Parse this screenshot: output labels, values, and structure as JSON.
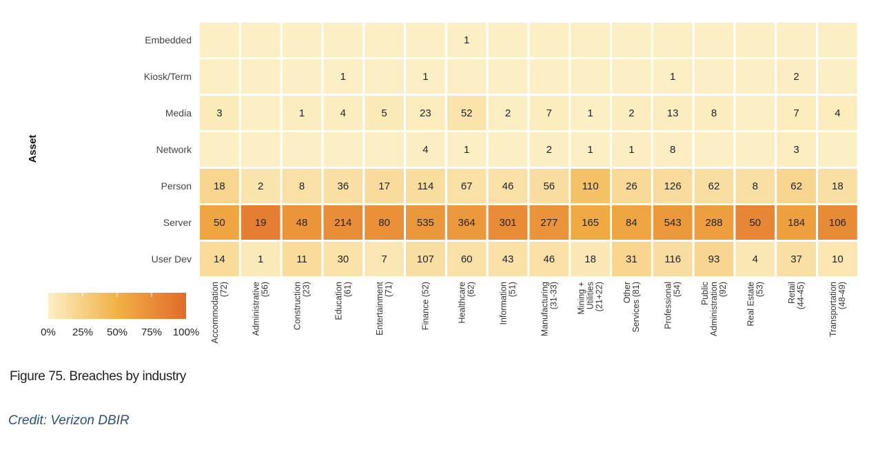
{
  "caption": "Figure 75. Breaches by industry",
  "credit": "Credit: Verizon DBIR",
  "colors": {
    "low": "#fcefc4",
    "mid": "#f2b146",
    "high": "#e06b2a",
    "text": "#222222",
    "credit": "#2d4f7c"
  },
  "chart_data": {
    "type": "heatmap",
    "ylabel": "Asset",
    "rows": [
      "Embedded",
      "Kiosk/Term",
      "Media",
      "Network",
      "Person",
      "Server",
      "User Dev"
    ],
    "columns": [
      [
        "Accommodation",
        "(72)"
      ],
      [
        "Administrative",
        "(56)"
      ],
      [
        "Construction",
        "(23)"
      ],
      [
        "Education",
        "(61)"
      ],
      [
        "Entertainment",
        "(71)"
      ],
      [
        "Finance (52)"
      ],
      [
        "Healthcare",
        "(62)"
      ],
      [
        "Information",
        "(51)"
      ],
      [
        "Manufacturing",
        "(31-33)"
      ],
      [
        "Mining +",
        "Utilities",
        "(21+22)"
      ],
      [
        "Other",
        "Services (81)"
      ],
      [
        "Professional",
        "(54)"
      ],
      [
        "Public",
        "Administration",
        "(92)"
      ],
      [
        "Real Estate",
        "(53)"
      ],
      [
        "Retail",
        "(44-45)"
      ],
      [
        "Transportation",
        "(48-49)"
      ]
    ],
    "values": [
      [
        null,
        null,
        null,
        null,
        null,
        null,
        1,
        null,
        null,
        null,
        null,
        null,
        null,
        null,
        null,
        null
      ],
      [
        null,
        null,
        null,
        1,
        null,
        1,
        null,
        null,
        null,
        null,
        null,
        1,
        null,
        null,
        2,
        null
      ],
      [
        3,
        null,
        1,
        4,
        5,
        23,
        52,
        2,
        7,
        1,
        2,
        13,
        8,
        null,
        7,
        4
      ],
      [
        null,
        null,
        null,
        null,
        null,
        4,
        1,
        null,
        2,
        1,
        1,
        8,
        null,
        null,
        3,
        null
      ],
      [
        18,
        2,
        8,
        36,
        17,
        114,
        67,
        46,
        56,
        110,
        26,
        126,
        62,
        8,
        62,
        18
      ],
      [
        50,
        19,
        48,
        214,
        80,
        535,
        364,
        301,
        277,
        165,
        84,
        543,
        288,
        50,
        184,
        106
      ],
      [
        14,
        1,
        11,
        30,
        7,
        107,
        60,
        43,
        46,
        18,
        31,
        116,
        93,
        4,
        37,
        10
      ]
    ],
    "legend": {
      "ticks": [
        "0%",
        "25%",
        "50%",
        "75%",
        "100%"
      ],
      "range": [
        0,
        1
      ]
    }
  }
}
